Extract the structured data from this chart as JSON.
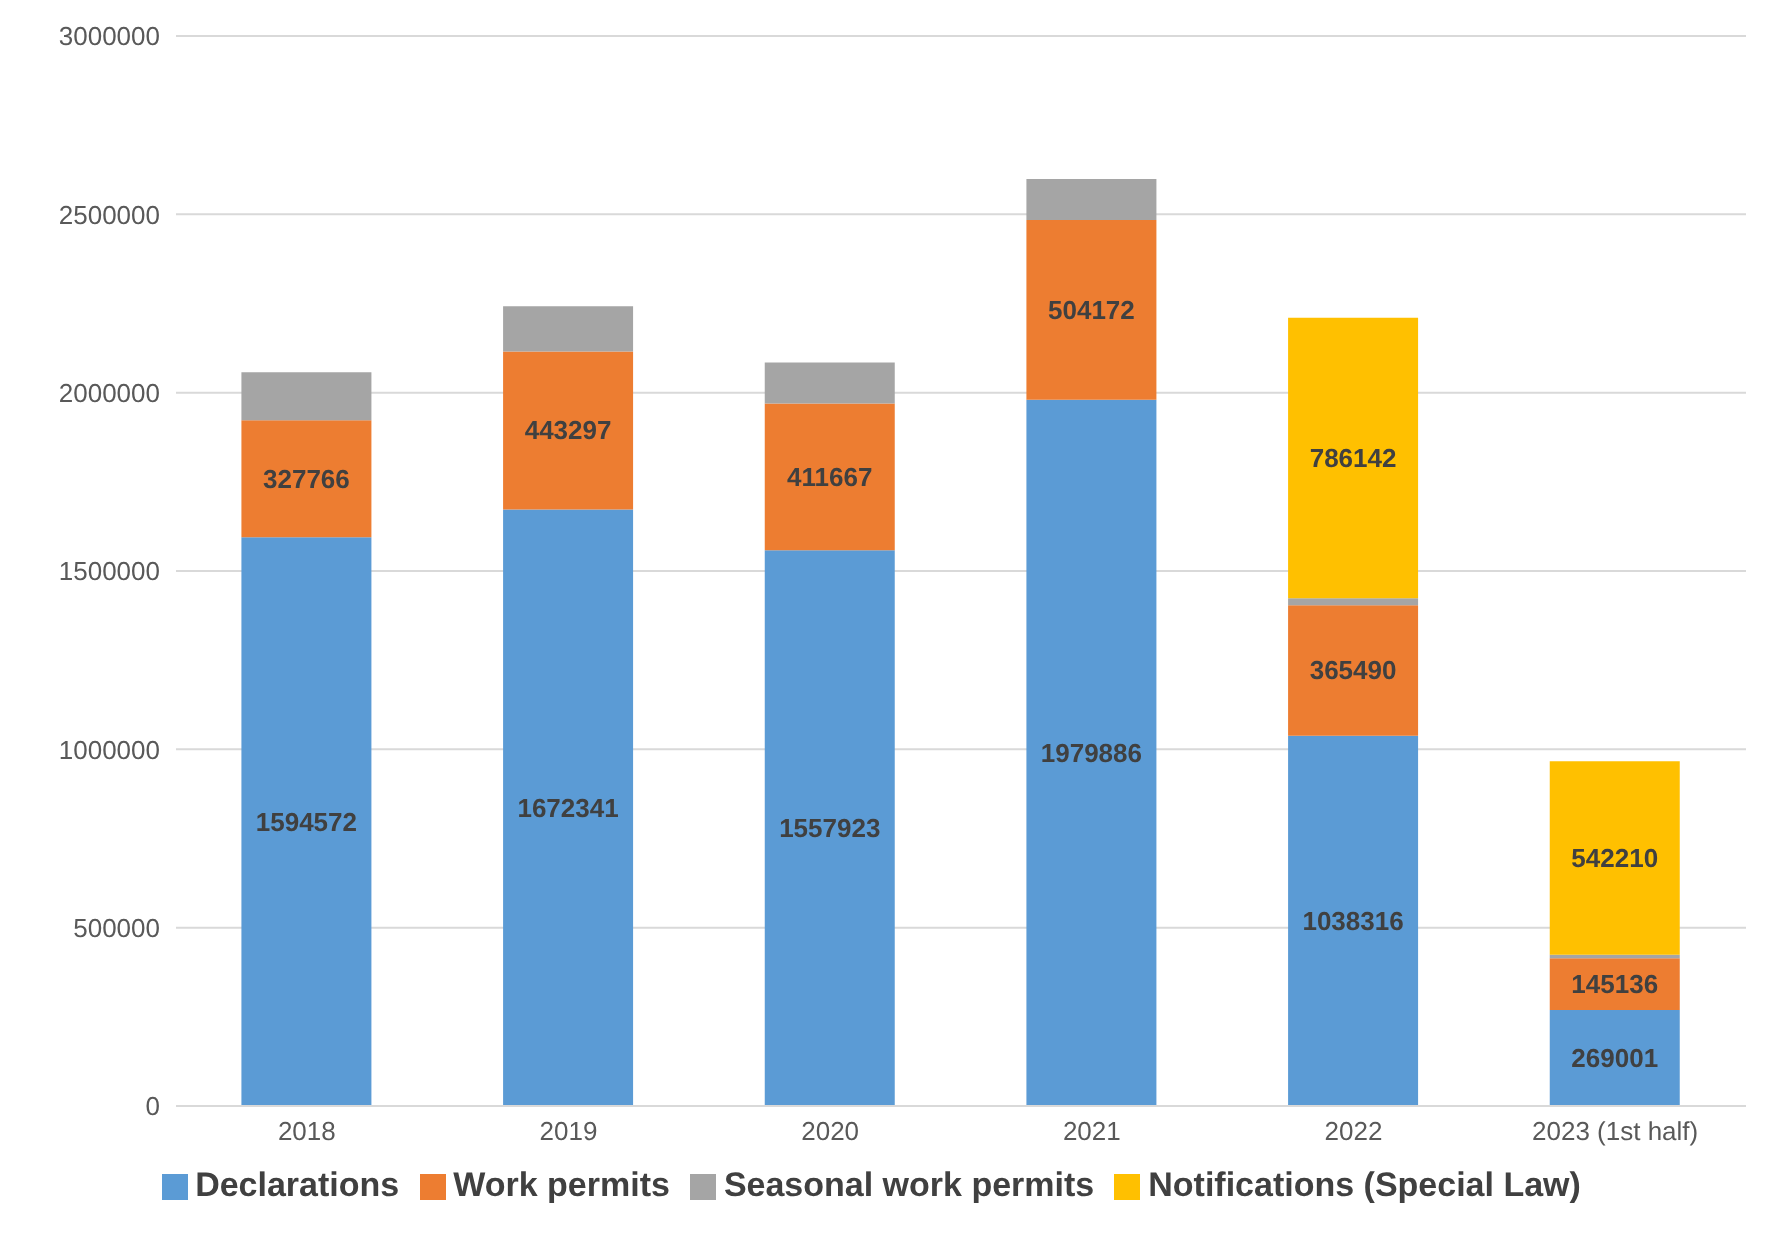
{
  "chart_data": {
    "type": "bar",
    "stacked": true,
    "categories": [
      "2018",
      "2019",
      "2020",
      "2021",
      "2022",
      "2023 (1st half)"
    ],
    "series": [
      {
        "name": "Declarations",
        "color": "#5b9bd5",
        "values": [
          1594572,
          1672341,
          1557923,
          1979886,
          1038316,
          269001
        ],
        "value_labels": [
          "1594572",
          "1672341",
          "1557923",
          "1979886",
          "1038316",
          "269001"
        ]
      },
      {
        "name": "Work permits",
        "color": "#ed7d31",
        "values": [
          327766,
          443297,
          411667,
          504172,
          365490,
          145136
        ],
        "value_labels": [
          "327766",
          "443297",
          "411667",
          "504172",
          "365490",
          "145136"
        ]
      },
      {
        "name": "Seasonal work permits",
        "color": "#a5a5a5",
        "values": [
          135000,
          127000,
          115000,
          115000,
          20000,
          10000
        ]
      },
      {
        "name": "Notifications (Special Law)",
        "color": "#ffc000",
        "values": [
          0,
          0,
          0,
          0,
          786142,
          542210
        ],
        "value_labels": [
          null,
          null,
          null,
          null,
          "786142",
          "542210"
        ]
      }
    ],
    "ylim": [
      0,
      3000000
    ],
    "yticks": [
      0,
      500000,
      1000000,
      1500000,
      2000000,
      2500000,
      3000000
    ],
    "grid": "y",
    "legend": "bottom"
  }
}
